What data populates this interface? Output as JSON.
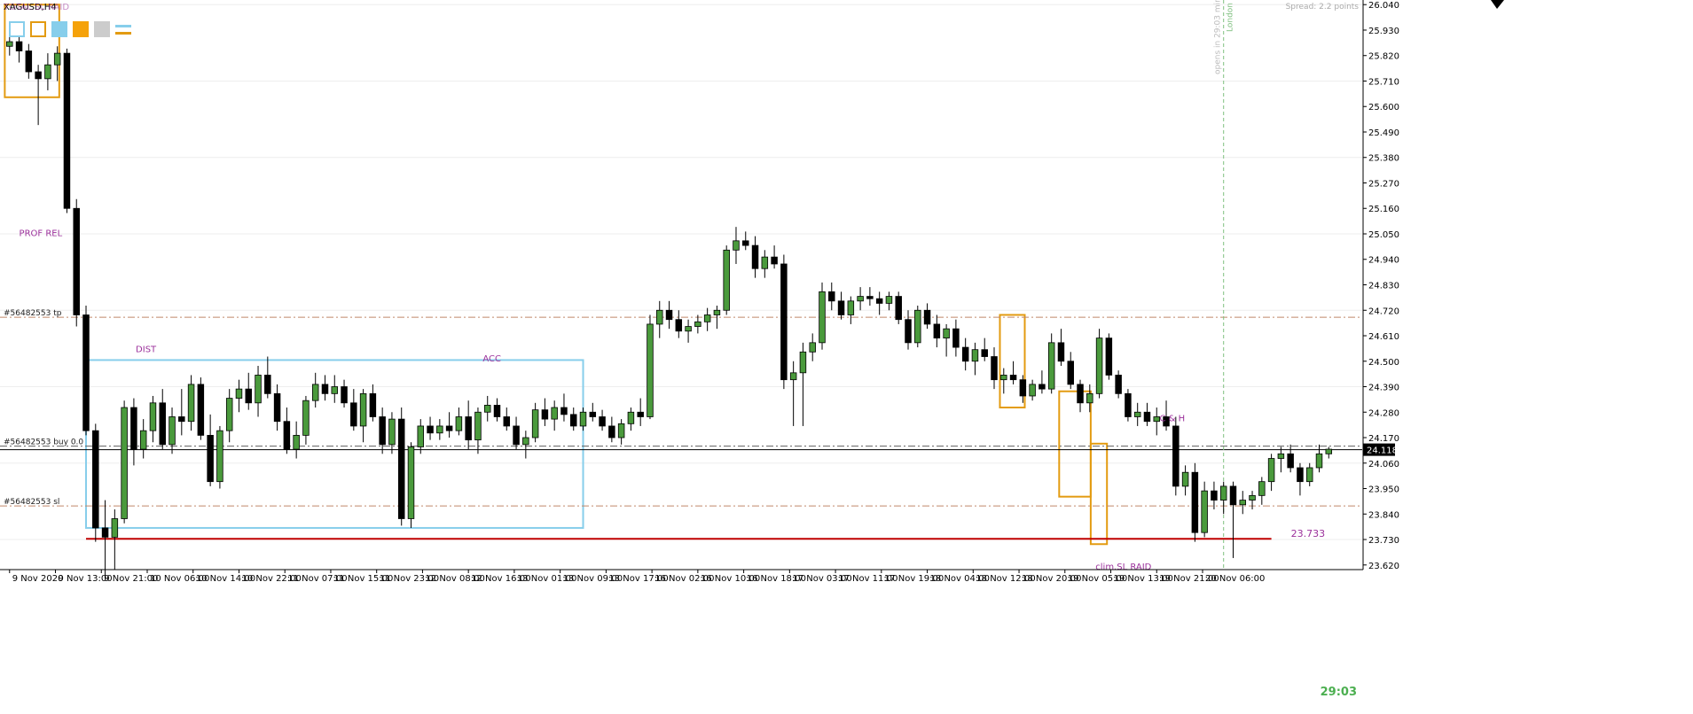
{
  "window": {
    "symbol_title": "XAGUSD,H4",
    "overlay_title": "TOTAL SL RAID",
    "spread_text": "Spread: 2.2 points",
    "countdown": "29:03"
  },
  "toolbar": {
    "buttons": [
      {
        "name": "rect-outline-light",
        "color": "#87ceeb",
        "style": "outline"
      },
      {
        "name": "rect-outline-orange",
        "color": "#e39b11",
        "style": "outline"
      },
      {
        "name": "rect-fill-light",
        "color": "#87ceeb",
        "style": "fill"
      },
      {
        "name": "rect-fill-orange",
        "color": "#f5a20a",
        "style": "fill"
      },
      {
        "name": "rect-fill-gray",
        "color": "#cccccc",
        "style": "fill"
      },
      {
        "name": "lines-icon",
        "colors": [
          "#87ceeb",
          "#e39b11"
        ],
        "style": "lines"
      }
    ]
  },
  "colors": {
    "bull_body": "#4a9a3c",
    "bear_body": "#000000",
    "wick": "#000000",
    "grid": "#eeeeee",
    "tp_line": "#c0866a",
    "sl_line": "#c0866a",
    "buy_line": "#606060",
    "current_price_line": "#000000",
    "support_line": "#c00000",
    "session_line": "#7fc07f",
    "range_box": "#87ceeb",
    "raid_box": "#e39b11",
    "annotation": "#9b309b",
    "countdown": "#4caf50"
  },
  "annotations": [
    {
      "text": "PROF REL",
      "x": 1,
      "y": 25.04
    },
    {
      "text": "DIST",
      "x": 13.2,
      "y": 24.54
    },
    {
      "text": "ACC",
      "x": 49.5,
      "y": 24.5
    },
    {
      "text": "C & H",
      "x": 120.3,
      "y": 24.24
    },
    {
      "text": "clim.SL RAID",
      "x": 113.6,
      "y": 23.6
    }
  ],
  "trade_levels": [
    {
      "label": "#56482553 tp",
      "price": 24.69,
      "style": "dashdot",
      "color_key": "tp_line"
    },
    {
      "label": "#56482553 buy 0.0",
      "price": 24.133,
      "style": "dashdot",
      "color_key": "buy_line"
    },
    {
      "label": "#56482553 sl",
      "price": 23.875,
      "style": "dashdot",
      "color_key": "sl_line"
    }
  ],
  "current_price": {
    "value": 24.118,
    "label": "24.118"
  },
  "support": {
    "value": 23.733,
    "label": "23.733",
    "x_from": 8,
    "x_to": 132
  },
  "session_marker": {
    "text": "London",
    "info_text": "opens in 29:03 min",
    "x": 127
  },
  "boxes": [
    {
      "kind": "range_box",
      "x0": 8,
      "x1": 60,
      "y_top": 24.505,
      "y_bottom": 23.78
    },
    {
      "kind": "raid_box",
      "x0": -0.5,
      "x1": 5.2,
      "y_top": 26.04,
      "y_bottom": 25.64
    },
    {
      "kind": "raid_box",
      "x0": 103.6,
      "x1": 106.2,
      "y_top": 24.7,
      "y_bottom": 24.3
    },
    {
      "kind": "raid_box",
      "x0": 109.8,
      "x1": 113.1,
      "y_top": 24.37,
      "y_bottom": 23.915
    },
    {
      "kind": "raid_box",
      "x0": 113.1,
      "x1": 114.8,
      "y_top": 24.144,
      "y_bottom": 23.71
    }
  ],
  "chart_data": {
    "type": "candlestick",
    "symbol": "XAGUSD",
    "timeframe": "H4",
    "ylim": [
      23.6,
      26.06
    ],
    "y_ticks": [
      23.62,
      23.73,
      23.84,
      23.95,
      24.06,
      24.17,
      24.28,
      24.39,
      24.5,
      24.61,
      24.72,
      24.83,
      24.94,
      25.05,
      25.16,
      25.27,
      25.38,
      25.49,
      25.6,
      25.71,
      25.82,
      25.93,
      26.04
    ],
    "y_tick_labels": [
      "23.620",
      "23.730",
      "23.840",
      "23.950",
      "24.060",
      "24.170",
      "24.280",
      "24.390",
      "24.500",
      "24.610",
      "24.720",
      "24.830",
      "24.940",
      "25.050",
      "25.160",
      "25.270",
      "25.380",
      "25.490",
      "25.600",
      "25.710",
      "25.820",
      "25.930",
      "26.040"
    ],
    "x_ticks": [
      {
        "x": 0,
        "label": "9 Nov 2020"
      },
      {
        "x": 4.8,
        "label": "9 Nov 13:00"
      },
      {
        "x": 9.6,
        "label": "9 Nov 21:00"
      },
      {
        "x": 14.4,
        "label": "10 Nov 06:00"
      },
      {
        "x": 19.2,
        "label": "10 Nov 14:00"
      },
      {
        "x": 24,
        "label": "10 Nov 22:00"
      },
      {
        "x": 28.8,
        "label": "11 Nov 07:00"
      },
      {
        "x": 33.6,
        "label": "11 Nov 15:00"
      },
      {
        "x": 38.4,
        "label": "11 Nov 23:00"
      },
      {
        "x": 43.2,
        "label": "12 Nov 08:00"
      },
      {
        "x": 48,
        "label": "12 Nov 16:00"
      },
      {
        "x": 52.8,
        "label": "13 Nov 01:00"
      },
      {
        "x": 57.6,
        "label": "13 Nov 09:00"
      },
      {
        "x": 62.4,
        "label": "13 Nov 17:00"
      },
      {
        "x": 67.2,
        "label": "16 Nov 02:00"
      },
      {
        "x": 72,
        "label": "16 Nov 10:00"
      },
      {
        "x": 76.8,
        "label": "16 Nov 18:00"
      },
      {
        "x": 81.6,
        "label": "17 Nov 03:00"
      },
      {
        "x": 86.4,
        "label": "17 Nov 11:00"
      },
      {
        "x": 91.2,
        "label": "17 Nov 19:00"
      },
      {
        "x": 96,
        "label": "18 Nov 04:00"
      },
      {
        "x": 100.8,
        "label": "18 Nov 12:00"
      },
      {
        "x": 105.6,
        "label": "18 Nov 20:00"
      },
      {
        "x": 110.4,
        "label": "19 Nov 05:00"
      },
      {
        "x": 115.2,
        "label": "19 Nov 13:00"
      },
      {
        "x": 120,
        "label": "19 Nov 21:00"
      },
      {
        "x": 124.8,
        "label": "20 Nov 06:00"
      }
    ],
    "x_range": [
      -1,
      141.5
    ],
    "ohlc": [
      [
        25.86,
        25.93,
        25.82,
        25.88
      ],
      [
        25.88,
        25.95,
        25.79,
        25.84
      ],
      [
        25.84,
        25.87,
        25.72,
        25.75
      ],
      [
        25.75,
        25.78,
        25.52,
        25.72
      ],
      [
        25.72,
        25.83,
        25.67,
        25.78
      ],
      [
        25.78,
        25.86,
        25.71,
        25.83
      ],
      [
        25.83,
        25.85,
        25.14,
        25.16
      ],
      [
        25.16,
        25.2,
        24.65,
        24.7
      ],
      [
        24.7,
        24.74,
        24.18,
        24.2
      ],
      [
        24.2,
        24.23,
        23.72,
        23.78
      ],
      [
        23.78,
        23.9,
        23.56,
        23.74
      ],
      [
        23.74,
        23.86,
        23.6,
        23.82
      ],
      [
        23.82,
        24.33,
        23.8,
        24.3
      ],
      [
        24.3,
        24.34,
        24.05,
        24.12
      ],
      [
        24.12,
        24.25,
        24.08,
        24.2
      ],
      [
        24.2,
        24.35,
        24.15,
        24.32
      ],
      [
        24.32,
        24.38,
        24.12,
        24.14
      ],
      [
        24.14,
        24.3,
        24.1,
        24.26
      ],
      [
        24.26,
        24.38,
        24.18,
        24.24
      ],
      [
        24.24,
        24.44,
        24.2,
        24.4
      ],
      [
        24.4,
        24.43,
        24.16,
        24.18
      ],
      [
        24.18,
        24.27,
        23.96,
        23.98
      ],
      [
        23.98,
        24.22,
        23.95,
        24.2
      ],
      [
        24.2,
        24.38,
        24.15,
        24.34
      ],
      [
        24.34,
        24.42,
        24.28,
        24.38
      ],
      [
        24.38,
        24.45,
        24.29,
        24.32
      ],
      [
        24.32,
        24.48,
        24.26,
        24.44
      ],
      [
        24.44,
        24.52,
        24.34,
        24.36
      ],
      [
        24.36,
        24.4,
        24.2,
        24.24
      ],
      [
        24.24,
        24.3,
        24.1,
        24.12
      ],
      [
        24.12,
        24.24,
        24.08,
        24.18
      ],
      [
        24.18,
        24.35,
        24.14,
        24.33
      ],
      [
        24.33,
        24.45,
        24.3,
        24.4
      ],
      [
        24.4,
        24.44,
        24.33,
        24.36
      ],
      [
        24.36,
        24.44,
        24.32,
        24.39
      ],
      [
        24.39,
        24.42,
        24.3,
        24.32
      ],
      [
        24.32,
        24.38,
        24.2,
        24.22
      ],
      [
        24.22,
        24.38,
        24.15,
        24.36
      ],
      [
        24.36,
        24.4,
        24.24,
        24.26
      ],
      [
        24.26,
        24.3,
        24.1,
        24.14
      ],
      [
        24.14,
        24.28,
        24.1,
        24.25
      ],
      [
        24.25,
        24.3,
        23.79,
        23.82
      ],
      [
        23.82,
        24.15,
        23.78,
        24.13
      ],
      [
        24.13,
        24.25,
        24.1,
        24.22
      ],
      [
        24.22,
        24.26,
        24.16,
        24.19
      ],
      [
        24.19,
        24.25,
        24.16,
        24.22
      ],
      [
        24.22,
        24.28,
        24.17,
        24.2
      ],
      [
        24.2,
        24.3,
        24.18,
        24.26
      ],
      [
        24.26,
        24.33,
        24.12,
        24.16
      ],
      [
        24.16,
        24.3,
        24.1,
        24.28
      ],
      [
        24.28,
        24.35,
        24.24,
        24.31
      ],
      [
        24.31,
        24.34,
        24.24,
        24.26
      ],
      [
        24.26,
        24.3,
        24.2,
        24.22
      ],
      [
        24.22,
        24.26,
        24.12,
        24.14
      ],
      [
        24.14,
        24.2,
        24.08,
        24.17
      ],
      [
        24.17,
        24.32,
        24.15,
        24.29
      ],
      [
        24.29,
        24.34,
        24.22,
        24.25
      ],
      [
        24.25,
        24.33,
        24.2,
        24.3
      ],
      [
        24.3,
        24.36,
        24.24,
        24.27
      ],
      [
        24.27,
        24.3,
        24.2,
        24.22
      ],
      [
        24.22,
        24.3,
        24.2,
        24.28
      ],
      [
        24.28,
        24.32,
        24.24,
        24.26
      ],
      [
        24.26,
        24.29,
        24.2,
        24.22
      ],
      [
        24.22,
        24.26,
        24.15,
        24.17
      ],
      [
        24.17,
        24.25,
        24.14,
        24.23
      ],
      [
        24.23,
        24.3,
        24.2,
        24.28
      ],
      [
        24.28,
        24.34,
        24.22,
        24.26
      ],
      [
        24.26,
        24.7,
        24.25,
        24.66
      ],
      [
        24.66,
        24.76,
        24.6,
        24.72
      ],
      [
        24.72,
        24.76,
        24.64,
        24.68
      ],
      [
        24.68,
        24.72,
        24.6,
        24.63
      ],
      [
        24.63,
        24.68,
        24.58,
        24.65
      ],
      [
        24.65,
        24.7,
        24.62,
        24.67
      ],
      [
        24.67,
        24.73,
        24.63,
        24.7
      ],
      [
        24.7,
        24.74,
        24.64,
        24.72
      ],
      [
        24.72,
        25.0,
        24.7,
        24.98
      ],
      [
        24.98,
        25.08,
        24.92,
        25.02
      ],
      [
        25.02,
        25.06,
        24.98,
        25.0
      ],
      [
        25.0,
        25.04,
        24.86,
        24.9
      ],
      [
        24.9,
        24.98,
        24.86,
        24.95
      ],
      [
        24.95,
        25.0,
        24.9,
        24.92
      ],
      [
        24.92,
        24.96,
        24.38,
        24.42
      ],
      [
        24.42,
        24.5,
        24.22,
        24.45
      ],
      [
        24.45,
        24.58,
        24.22,
        24.54
      ],
      [
        24.54,
        24.62,
        24.5,
        24.58
      ],
      [
        24.58,
        24.84,
        24.55,
        24.8
      ],
      [
        24.8,
        24.84,
        24.72,
        24.76
      ],
      [
        24.76,
        24.8,
        24.68,
        24.7
      ],
      [
        24.7,
        24.78,
        24.66,
        24.76
      ],
      [
        24.76,
        24.82,
        24.72,
        24.78
      ],
      [
        24.78,
        24.82,
        24.74,
        24.77
      ],
      [
        24.77,
        24.8,
        24.7,
        24.75
      ],
      [
        24.75,
        24.8,
        24.72,
        24.78
      ],
      [
        24.78,
        24.8,
        24.66,
        24.68
      ],
      [
        24.68,
        24.72,
        24.55,
        24.58
      ],
      [
        24.58,
        24.74,
        24.56,
        24.72
      ],
      [
        24.72,
        24.75,
        24.64,
        24.66
      ],
      [
        24.66,
        24.7,
        24.56,
        24.6
      ],
      [
        24.6,
        24.66,
        24.52,
        24.64
      ],
      [
        24.64,
        24.68,
        24.52,
        24.56
      ],
      [
        24.56,
        24.6,
        24.46,
        24.5
      ],
      [
        24.5,
        24.58,
        24.44,
        24.55
      ],
      [
        24.55,
        24.6,
        24.5,
        24.52
      ],
      [
        24.52,
        24.56,
        24.38,
        24.42
      ],
      [
        24.42,
        24.47,
        24.36,
        24.44
      ],
      [
        24.44,
        24.5,
        24.4,
        24.42
      ],
      [
        24.42,
        24.44,
        24.32,
        24.35
      ],
      [
        24.35,
        24.42,
        24.33,
        24.4
      ],
      [
        24.4,
        24.46,
        24.36,
        24.38
      ],
      [
        24.38,
        24.62,
        24.36,
        24.58
      ],
      [
        24.58,
        24.64,
        24.48,
        24.5
      ],
      [
        24.5,
        24.54,
        24.38,
        24.4
      ],
      [
        24.4,
        24.42,
        24.28,
        24.32
      ],
      [
        24.32,
        24.4,
        24.28,
        24.36
      ],
      [
        24.36,
        24.64,
        24.34,
        24.6
      ],
      [
        24.6,
        24.62,
        24.42,
        24.44
      ],
      [
        24.44,
        24.46,
        24.34,
        24.36
      ],
      [
        24.36,
        24.38,
        24.24,
        24.26
      ],
      [
        24.26,
        24.32,
        24.22,
        24.28
      ],
      [
        24.28,
        24.32,
        24.22,
        24.24
      ],
      [
        24.24,
        24.3,
        24.18,
        24.26
      ],
      [
        24.26,
        24.33,
        24.2,
        24.22
      ],
      [
        24.22,
        24.26,
        23.92,
        23.96
      ],
      [
        23.96,
        24.05,
        23.92,
        24.02
      ],
      [
        24.02,
        24.06,
        23.72,
        23.76
      ],
      [
        23.76,
        23.98,
        23.74,
        23.94
      ],
      [
        23.94,
        23.98,
        23.86,
        23.9
      ],
      [
        23.9,
        23.98,
        23.84,
        23.96
      ],
      [
        23.96,
        23.98,
        23.65,
        23.88
      ],
      [
        23.88,
        23.94,
        23.84,
        23.9
      ],
      [
        23.9,
        23.94,
        23.86,
        23.92
      ],
      [
        23.92,
        24.0,
        23.88,
        23.98
      ],
      [
        23.98,
        24.1,
        23.94,
        24.08
      ],
      [
        24.08,
        24.13,
        24.02,
        24.1
      ],
      [
        24.1,
        24.14,
        24.02,
        24.04
      ],
      [
        24.04,
        24.06,
        23.92,
        23.98
      ],
      [
        23.98,
        24.06,
        23.96,
        24.04
      ],
      [
        24.04,
        24.14,
        24.02,
        24.1
      ],
      [
        24.1,
        24.13,
        24.08,
        24.12
      ]
    ]
  }
}
